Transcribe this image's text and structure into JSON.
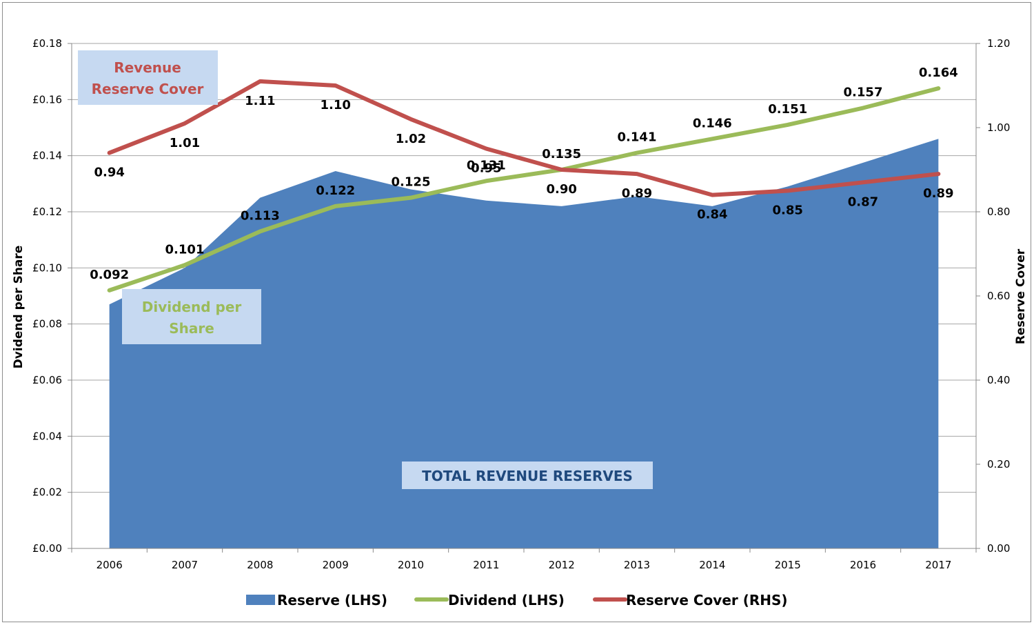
{
  "chart_data": {
    "type": "area+line",
    "x": [
      "2006",
      "2007",
      "2008",
      "2009",
      "2010",
      "2011",
      "2012",
      "2013",
      "2014",
      "2015",
      "2016",
      "2017"
    ],
    "series": [
      {
        "name": "Reserve (LHS)",
        "type": "area",
        "axis": "left",
        "color": "#4f81bd",
        "values": [
          0.087,
          0.1,
          0.125,
          0.1345,
          0.128,
          0.124,
          0.122,
          0.1255,
          0.122,
          0.129,
          0.1375,
          0.146
        ]
      },
      {
        "name": "Dividend (LHS)",
        "type": "line",
        "axis": "left",
        "color": "#9bbb59",
        "values": [
          0.092,
          0.101,
          0.113,
          0.122,
          0.125,
          0.131,
          0.135,
          0.141,
          0.146,
          0.151,
          0.157,
          0.164
        ],
        "labels": [
          "0.092",
          "0.101",
          "0.113",
          "0.122",
          "0.125",
          "0.131",
          "0.135",
          "0.141",
          "0.146",
          "0.151",
          "0.157",
          "0.164"
        ]
      },
      {
        "name": "Reserve Cover (RHS)",
        "type": "line",
        "axis": "right",
        "color": "#c0504d",
        "values": [
          0.94,
          1.01,
          1.11,
          1.1,
          1.02,
          0.95,
          0.9,
          0.89,
          0.84,
          0.85,
          0.87,
          0.89
        ],
        "labels": [
          "0.94",
          "1.01",
          "1.11",
          "1.10",
          "1.02",
          "0.95",
          "0.90",
          "0.89",
          "0.84",
          "0.85",
          "0.87",
          "0.89"
        ]
      }
    ],
    "y_left": {
      "label": "Dvidend per Share",
      "range": [
        0,
        0.18
      ],
      "ticks": [
        "£0.00",
        "£0.02",
        "£0.04",
        "£0.06",
        "£0.08",
        "£0.10",
        "£0.12",
        "£0.14",
        "£0.16",
        "£0.18"
      ]
    },
    "y_right": {
      "label": "Reserve Cover",
      "range": [
        0,
        1.2
      ],
      "ticks": [
        "0.00",
        "0.20",
        "0.40",
        "0.60",
        "0.80",
        "1.00",
        "1.20"
      ]
    },
    "grid": true,
    "legend": "bottom",
    "annotations": {
      "cover": {
        "line1": "Revenue",
        "line2": "Reserve Cover"
      },
      "dividend": {
        "line1": "Dividend per",
        "line2": "Share"
      },
      "reserves": "TOTAL REVENUE RESERVES"
    }
  }
}
